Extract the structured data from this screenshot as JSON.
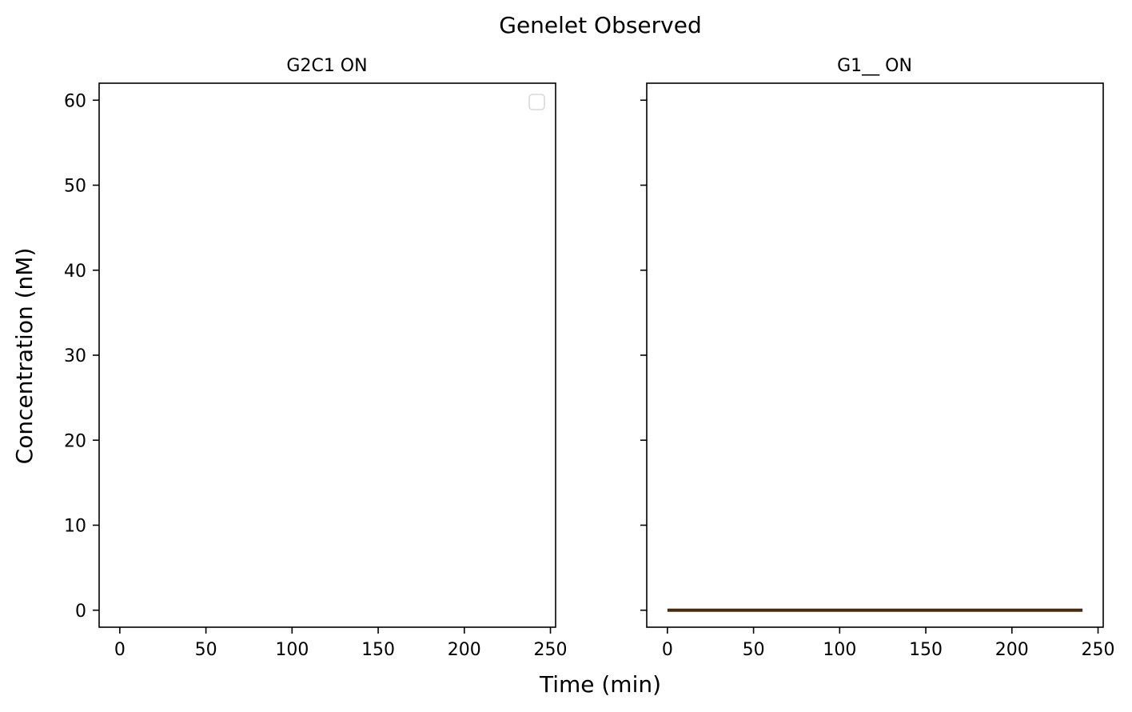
{
  "figure": {
    "title": "Genelet Observed",
    "xlabel": "Time (min)",
    "ylabel": "Concentration (nM)"
  },
  "chart_data": [
    {
      "type": "line",
      "title": "G2C1 ON",
      "xlim": [
        -12,
        253
      ],
      "ylim": [
        -2,
        62
      ],
      "xticks": [
        0,
        50,
        100,
        150,
        200,
        250
      ],
      "yticks": [
        0,
        10,
        20,
        30,
        40,
        50,
        60
      ],
      "ytick_labels_shown": true,
      "legend": "top-right",
      "legend_entries": [],
      "series": []
    },
    {
      "type": "line",
      "title": "G1__ ON",
      "xlim": [
        -12,
        253
      ],
      "ylim": [
        -2,
        62
      ],
      "xticks": [
        0,
        50,
        100,
        150,
        200,
        250
      ],
      "yticks": [
        0,
        10,
        20,
        30,
        40,
        50,
        60
      ],
      "ytick_labels_shown": false,
      "series": [
        {
          "color": "#4a2a0a",
          "x": [
            0,
            241
          ],
          "y": [
            0,
            0
          ]
        }
      ]
    }
  ]
}
